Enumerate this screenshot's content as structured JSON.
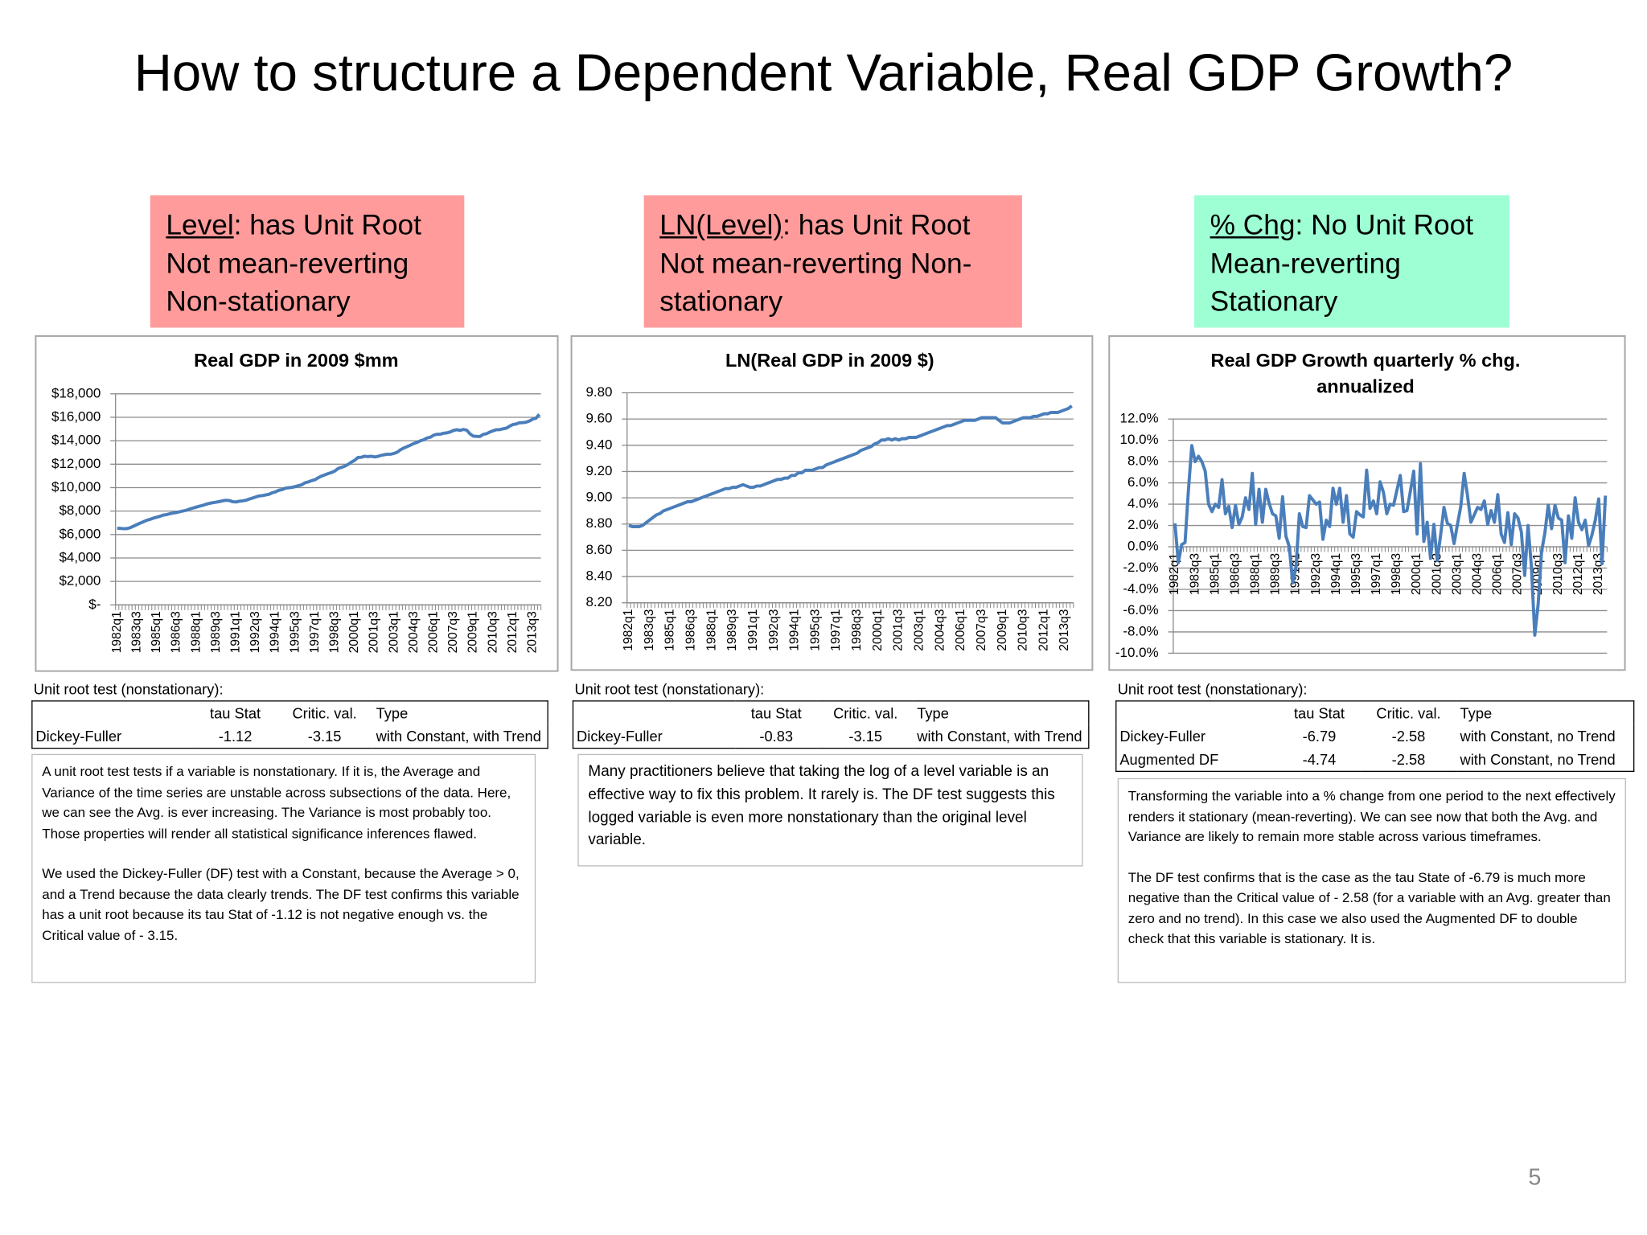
{
  "title": "How to structure a Dependent Variable, Real GDP Growth?",
  "callouts": [
    {
      "label": "Level",
      "text": ": has Unit Root",
      "lines": [
        "Not mean-reverting",
        "Non-stationary"
      ]
    },
    {
      "label": "LN(Level)",
      "text": ": has Unit Root",
      "lines": [
        "Not mean-reverting Non-stationary"
      ]
    },
    {
      "label": "% Chg",
      "text": ": No Unit Root",
      "lines": [
        "Mean-reverting",
        "Stationary"
      ]
    }
  ],
  "chart_data": [
    {
      "type": "line",
      "title": "Real GDP in 2009 $mm",
      "categories": [
        "1982q1",
        null,
        null,
        null,
        null,
        null,
        "1983q3",
        null,
        null,
        null,
        null,
        null,
        "1985q1",
        null,
        null,
        null,
        null,
        null,
        "1986q3",
        null,
        null,
        null,
        null,
        null,
        "1988q1",
        null,
        null,
        null,
        null,
        null,
        "1989q3",
        null,
        null,
        null,
        null,
        null,
        "1991q1",
        null,
        null,
        null,
        null,
        null,
        "1992q3",
        null,
        null,
        null,
        null,
        null,
        "1994q1",
        null,
        null,
        null,
        null,
        null,
        "1995q3",
        null,
        null,
        null,
        null,
        null,
        "1997q1",
        null,
        null,
        null,
        null,
        null,
        "1998q3",
        null,
        null,
        null,
        null,
        null,
        "2000q1",
        null,
        null,
        null,
        null,
        null,
        "2001q3",
        null,
        null,
        null,
        null,
        null,
        "2003q1",
        null,
        null,
        null,
        null,
        null,
        "2004q3",
        null,
        null,
        null,
        null,
        null,
        "2006q1",
        null,
        null,
        null,
        null,
        null,
        "2007q3",
        null,
        null,
        null,
        null,
        null,
        "2009q1",
        null,
        null,
        null,
        null,
        null,
        "2010q3",
        null,
        null,
        null,
        null,
        null,
        "2012q1",
        null,
        null,
        null,
        null,
        null,
        "2013q3",
        null,
        null
      ],
      "series": [
        {
          "color": "#4a7ebb",
          "values": [
            6540,
            6520,
            6500,
            6510,
            6590,
            6720,
            6850,
            6980,
            7100,
            7220,
            7300,
            7400,
            7480,
            7560,
            7660,
            7700,
            7780,
            7830,
            7880,
            7950,
            8010,
            8070,
            8180,
            8260,
            8340,
            8420,
            8490,
            8590,
            8660,
            8720,
            8760,
            8810,
            8880,
            8920,
            8900,
            8800,
            8780,
            8840,
            8870,
            8920,
            9020,
            9110,
            9200,
            9290,
            9320,
            9380,
            9430,
            9560,
            9640,
            9770,
            9830,
            9950,
            9990,
            10020,
            10090,
            10170,
            10250,
            10420,
            10490,
            10600,
            10680,
            10850,
            10990,
            11090,
            11200,
            11290,
            11420,
            11630,
            11730,
            11830,
            11980,
            12170,
            12330,
            12570,
            12590,
            12680,
            12640,
            12680,
            12620,
            12660,
            12750,
            12810,
            12850,
            12850,
            12920,
            13040,
            13250,
            13390,
            13510,
            13630,
            13770,
            13870,
            14000,
            14090,
            14240,
            14300,
            14480,
            14550,
            14560,
            14640,
            14670,
            14750,
            14880,
            14940,
            14880,
            14960,
            14900,
            14580,
            14390,
            14370,
            14360,
            14540,
            14600,
            14740,
            14850,
            14940,
            14940,
            15020,
            15070,
            15240,
            15380,
            15430,
            15530,
            15540,
            15580,
            15680,
            15840,
            15920,
            16250
          ]
        }
      ],
      "ylim": [
        0,
        18000
      ],
      "yticks": [
        {
          "value": 0,
          "label": "$-"
        },
        {
          "value": 2000,
          "label": "$2,000"
        },
        {
          "value": 4000,
          "label": "$4,000"
        },
        {
          "value": 6000,
          "label": "$6,000"
        },
        {
          "value": 8000,
          "label": "$8,000"
        },
        {
          "value": 10000,
          "label": "$10,000"
        },
        {
          "value": 12000,
          "label": "$12,000"
        },
        {
          "value": 14000,
          "label": "$14,000"
        },
        {
          "value": 16000,
          "label": "$16,000"
        },
        {
          "value": 18000,
          "label": "$18,000"
        }
      ],
      "grid": true
    },
    {
      "type": "line",
      "title": "LN(Real GDP in 2009 $)",
      "categories": [
        "1982q1",
        null,
        null,
        null,
        null,
        null,
        "1983q3",
        null,
        null,
        null,
        null,
        null,
        "1985q1",
        null,
        null,
        null,
        null,
        null,
        "1986q3",
        null,
        null,
        null,
        null,
        null,
        "1988q1",
        null,
        null,
        null,
        null,
        null,
        "1989q3",
        null,
        null,
        null,
        null,
        null,
        "1991q1",
        null,
        null,
        null,
        null,
        null,
        "1992q3",
        null,
        null,
        null,
        null,
        null,
        "1994q1",
        null,
        null,
        null,
        null,
        null,
        "1995q3",
        null,
        null,
        null,
        null,
        null,
        "1997q1",
        null,
        null,
        null,
        null,
        null,
        "1998q3",
        null,
        null,
        null,
        null,
        null,
        "2000q1",
        null,
        null,
        null,
        null,
        null,
        "2001q3",
        null,
        null,
        null,
        null,
        null,
        "2003q1",
        null,
        null,
        null,
        null,
        null,
        "2004q3",
        null,
        null,
        null,
        null,
        null,
        "2006q1",
        null,
        null,
        null,
        null,
        null,
        "2007q3",
        null,
        null,
        null,
        null,
        null,
        "2009q1",
        null,
        null,
        null,
        null,
        null,
        "2010q3",
        null,
        null,
        null,
        null,
        null,
        "2012q1",
        null,
        null,
        null,
        null,
        null,
        "2013q3",
        null,
        null
      ],
      "series": [
        {
          "color": "#4a7ebb",
          "values": [
            8.79,
            8.78,
            8.78,
            8.78,
            8.79,
            8.81,
            8.83,
            8.85,
            8.87,
            8.88,
            8.9,
            8.91,
            8.92,
            8.93,
            8.94,
            8.95,
            8.96,
            8.97,
            8.97,
            8.98,
            8.99,
            9.0,
            9.01,
            9.02,
            9.03,
            9.04,
            9.05,
            9.06,
            9.07,
            9.07,
            9.08,
            9.08,
            9.09,
            9.1,
            9.09,
            9.08,
            9.08,
            9.09,
            9.09,
            9.1,
            9.11,
            9.12,
            9.13,
            9.14,
            9.14,
            9.15,
            9.15,
            9.17,
            9.17,
            9.19,
            9.19,
            9.21,
            9.21,
            9.21,
            9.22,
            9.23,
            9.23,
            9.25,
            9.26,
            9.27,
            9.28,
            9.29,
            9.3,
            9.31,
            9.32,
            9.33,
            9.34,
            9.36,
            9.37,
            9.38,
            9.39,
            9.41,
            9.42,
            9.44,
            9.44,
            9.45,
            9.44,
            9.45,
            9.44,
            9.45,
            9.45,
            9.46,
            9.46,
            9.46,
            9.47,
            9.48,
            9.49,
            9.5,
            9.51,
            9.52,
            9.53,
            9.54,
            9.55,
            9.55,
            9.56,
            9.57,
            9.58,
            9.59,
            9.59,
            9.59,
            9.59,
            9.6,
            9.61,
            9.61,
            9.61,
            9.61,
            9.61,
            9.59,
            9.57,
            9.57,
            9.57,
            9.58,
            9.59,
            9.6,
            9.61,
            9.61,
            9.61,
            9.62,
            9.62,
            9.63,
            9.64,
            9.64,
            9.65,
            9.65,
            9.65,
            9.66,
            9.67,
            9.68,
            9.7
          ]
        }
      ],
      "ylim": [
        8.2,
        9.8
      ],
      "yticks": [
        {
          "value": 8.2,
          "label": "8.20"
        },
        {
          "value": 8.4,
          "label": "8.40"
        },
        {
          "value": 8.6,
          "label": "8.60"
        },
        {
          "value": 8.8,
          "label": "8.80"
        },
        {
          "value": 9,
          "label": "9.00"
        },
        {
          "value": 9.2,
          "label": "9.20"
        },
        {
          "value": 9.4,
          "label": "9.40"
        },
        {
          "value": 9.6,
          "label": "9.60"
        },
        {
          "value": 9.8,
          "label": "9.80"
        }
      ],
      "grid": true
    },
    {
      "type": "line",
      "title": "Real GDP Growth quarterly % chg. annualized",
      "categories": [
        "1982q1",
        null,
        null,
        null,
        null,
        null,
        "1983q3",
        null,
        null,
        null,
        null,
        null,
        "1985q1",
        null,
        null,
        null,
        null,
        null,
        "1986q3",
        null,
        null,
        null,
        null,
        null,
        "1988q1",
        null,
        null,
        null,
        null,
        null,
        "1989q3",
        null,
        null,
        null,
        null,
        null,
        "1991q1",
        null,
        null,
        null,
        null,
        null,
        "1992q3",
        null,
        null,
        null,
        null,
        null,
        "1994q1",
        null,
        null,
        null,
        null,
        null,
        "1995q3",
        null,
        null,
        null,
        null,
        null,
        "1997q1",
        null,
        null,
        null,
        null,
        null,
        "1998q3",
        null,
        null,
        null,
        null,
        null,
        "2000q1",
        null,
        null,
        null,
        null,
        null,
        "2001q3",
        null,
        null,
        null,
        null,
        null,
        "2003q1",
        null,
        null,
        null,
        null,
        null,
        "2004q3",
        null,
        null,
        null,
        null,
        null,
        "2006q1",
        null,
        null,
        null,
        null,
        null,
        "2007q3",
        null,
        null,
        null,
        null,
        null,
        "2009q1",
        null,
        null,
        null,
        null,
        null,
        "2010q3",
        null,
        null,
        null,
        null,
        null,
        "2012q1",
        null,
        null,
        null,
        null,
        null,
        "2013q3",
        null,
        null
      ],
      "series": [
        {
          "color": "#4a7ebb",
          "values": [
            2.2,
            -1.5,
            0.2,
            0.4,
            5.3,
            9.5,
            8.0,
            8.5,
            8.0,
            7.1,
            4.0,
            3.3,
            4.0,
            3.7,
            6.3,
            3.1,
            3.8,
            1.8,
            3.9,
            2.1,
            2.8,
            4.6,
            3.5,
            6.9,
            2.1,
            5.4,
            2.3,
            5.4,
            4.1,
            3.1,
            2.9,
            0.8,
            4.7,
            1.0,
            0.0,
            -3.4,
            -1.9,
            3.1,
            1.9,
            1.8,
            4.8,
            4.4,
            4.0,
            4.2,
            0.7,
            2.5,
            1.9,
            5.5,
            4.0,
            5.5,
            2.3,
            4.8,
            1.2,
            0.9,
            3.3,
            3.0,
            2.8,
            7.2,
            3.6,
            4.3,
            3.1,
            6.1,
            5.1,
            3.1,
            4.0,
            3.9,
            5.3,
            6.7,
            3.3,
            3.4,
            5.2,
            7.1,
            1.2,
            7.8,
            0.5,
            2.3,
            -1.1,
            2.1,
            -1.3,
            1.1,
            3.7,
            2.2,
            2.0,
            0.3,
            2.1,
            3.8,
            6.9,
            4.8,
            2.3,
            3.0,
            3.7,
            3.5,
            4.3,
            2.1,
            3.4,
            2.3,
            4.9,
            1.2,
            0.4,
            3.2,
            0.2,
            3.1,
            2.7,
            1.4,
            -2.7,
            2.0,
            -1.9,
            -8.3,
            -5.4,
            -0.5,
            1.3,
            3.9,
            1.7,
            3.9,
            2.7,
            2.5,
            -1.5,
            2.9,
            0.8,
            4.6,
            2.3,
            1.6,
            2.5,
            0.1,
            1.1,
            2.5,
            4.5,
            -1.6,
            4.8
          ]
        }
      ],
      "ylim": [
        -10,
        12
      ],
      "yticks": [
        {
          "value": -10,
          "label": "-10.0%"
        },
        {
          "value": -8,
          "label": "-8.0%"
        },
        {
          "value": -6,
          "label": "-6.0%"
        },
        {
          "value": -4,
          "label": "-4.0%"
        },
        {
          "value": -2,
          "label": "-2.0%"
        },
        {
          "value": 0,
          "label": "0.0%"
        },
        {
          "value": 2,
          "label": "2.0%"
        },
        {
          "value": 4,
          "label": "4.0%"
        },
        {
          "value": 6,
          "label": "6.0%"
        },
        {
          "value": 8,
          "label": "8.0%"
        },
        {
          "value": 10,
          "label": "10.0%"
        },
        {
          "value": 12,
          "label": "12.0%"
        }
      ],
      "grid": true
    }
  ],
  "tests": [
    {
      "caption": "Unit root test (nonstationary):",
      "columns": [
        "tau Stat",
        "Critic. val.",
        "Type"
      ],
      "rows": [
        [
          "Dickey-Fuller",
          -1.12,
          -3.15,
          "with Constant, with Trend"
        ]
      ]
    },
    {
      "caption": "Unit root test (nonstationary):",
      "columns": [
        "tau Stat",
        "Critic. val.",
        "Type"
      ],
      "rows": [
        [
          "Dickey-Fuller",
          -0.83,
          -3.15,
          "with Constant, with Trend"
        ]
      ]
    },
    {
      "caption": "Unit root test (nonstationary):",
      "columns": [
        "tau Stat",
        "Critic. val.",
        "Type"
      ],
      "rows": [
        [
          "Dickey-Fuller",
          -6.79,
          -2.58,
          "with Constant, no Trend"
        ],
        [
          "Augmented DF",
          -4.74,
          -2.58,
          "with Constant, no Trend"
        ]
      ]
    }
  ],
  "notes": [
    [
      "A unit root test tests if a variable is nonstationary.  If it is, the Average and Variance of the time series are unstable across subsections of the data.  Here, we can see the Avg. is ever increasing.  The Variance is most probably too.  Those properties will render all statistical significance inferences flawed.",
      "We used the Dickey-Fuller (DF) test  with a Constant, because the Average > 0, and a Trend because the data clearly trends.  The DF test confirms this variable has a unit root because its tau Stat  of -1.12 is not negative enough vs. the Critical value of - 3.15."
    ],
    [
      "Many practitioners believe that taking the log of a level variable is an effective way to fix this problem.   It rarely is.  The DF test suggests this logged variable is even more nonstationary  than the original level variable."
    ],
    [
      "Transforming the variable into a % change from one period to the next effectively renders it stationary (mean-reverting).  We can see now that both the Avg. and Variance are likely to remain more stable across various timeframes.",
      "The DF test confirms that is the case as the tau State of -6.79 is much more negative than the Critical value of - 2.58 (for a variable with an Avg. greater than zero and no trend).  In this case we also used the Augmented DF to double check that this variable is stationary.  It is."
    ]
  ],
  "page_number": 5
}
